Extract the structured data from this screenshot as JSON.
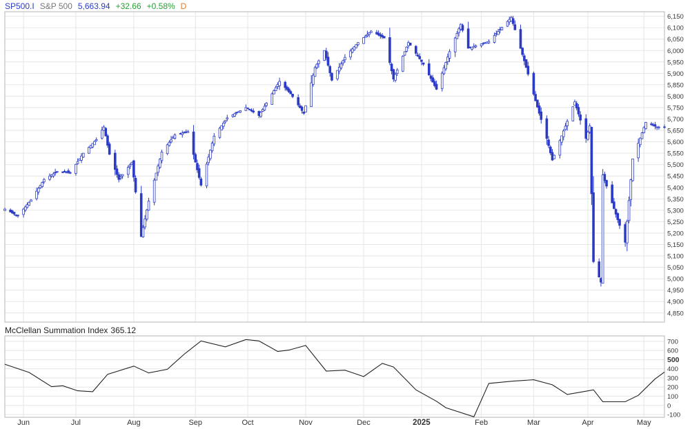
{
  "header": {
    "symbol": "SP500.I",
    "name": "S&P 500",
    "last": "5,663.94",
    "change": "+32.66",
    "change_pct": "+0.58%",
    "frequency": "D"
  },
  "colors": {
    "candle": "#2b3bc6",
    "indicator_line": "#222222",
    "grid": "#e6e6e6",
    "border": "#b4b4b4",
    "change_up": "#26a032",
    "frequency": "#ef7b1a"
  },
  "indicator": {
    "title": "McClellan Summation Index",
    "value": "365.12"
  },
  "chart_data": [
    {
      "type": "candlestick",
      "title": "SP500.I S&P 500",
      "ylim": [
        4810,
        6170
      ],
      "yticks": [
        4850,
        4900,
        4950,
        5000,
        5050,
        5100,
        5150,
        5200,
        5250,
        5300,
        5350,
        5400,
        5450,
        5500,
        5550,
        5600,
        5650,
        5700,
        5750,
        5800,
        5850,
        5900,
        5950,
        6000,
        6050,
        6100,
        6150
      ],
      "ytick_labels": [
        "4,850",
        "4,900",
        "4,950",
        "5,000",
        "5,050",
        "5,100",
        "5,150",
        "5,200",
        "5,250",
        "5,300",
        "5,350",
        "5,400",
        "5,450",
        "5,500",
        "5,550",
        "5,600",
        "5,650",
        "5,700",
        "5,750",
        "5,800",
        "5,850",
        "5,900",
        "5,950",
        "6,000",
        "6,050",
        "6,100",
        "6,150"
      ],
      "x_range": [
        "2024-05-24",
        "2025-05-12"
      ],
      "xticks": [
        {
          "date": "2024-06-03",
          "label": "Jun",
          "bold": false
        },
        {
          "date": "2024-07-01",
          "label": "Jul",
          "bold": false
        },
        {
          "date": "2024-08-01",
          "label": "Aug",
          "bold": false
        },
        {
          "date": "2024-09-03",
          "label": "Sep",
          "bold": false
        },
        {
          "date": "2024-10-01",
          "label": "Oct",
          "bold": false
        },
        {
          "date": "2024-11-01",
          "label": "Nov",
          "bold": false
        },
        {
          "date": "2024-12-02",
          "label": "Dec",
          "bold": false
        },
        {
          "date": "2025-01-02",
          "label": "2025",
          "bold": true
        },
        {
          "date": "2025-02-03",
          "label": "Feb",
          "bold": false
        },
        {
          "date": "2025-03-03",
          "label": "Mar",
          "bold": false
        },
        {
          "date": "2025-04-01",
          "label": "Apr",
          "bold": false
        },
        {
          "date": "2025-05-01",
          "label": "May",
          "bold": false
        }
      ],
      "grid": true,
      "close_path": [
        [
          "2024-05-24",
          5305
        ],
        [
          "2024-05-31",
          5275
        ],
        [
          "2024-06-07",
          5345
        ],
        [
          "2024-06-14",
          5435
        ],
        [
          "2024-06-21",
          5470
        ],
        [
          "2024-06-28",
          5465
        ],
        [
          "2024-07-05",
          5550
        ],
        [
          "2024-07-12",
          5610
        ],
        [
          "2024-07-16",
          5665
        ],
        [
          "2024-07-19",
          5545
        ],
        [
          "2024-07-24",
          5435
        ],
        [
          "2024-07-31",
          5510
        ],
        [
          "2024-08-05",
          5185
        ],
        [
          "2024-08-09",
          5340
        ],
        [
          "2024-08-16",
          5555
        ],
        [
          "2024-08-23",
          5630
        ],
        [
          "2024-08-30",
          5645
        ],
        [
          "2024-09-06",
          5410
        ],
        [
          "2024-09-13",
          5625
        ],
        [
          "2024-09-20",
          5705
        ],
        [
          "2024-09-30",
          5750
        ],
        [
          "2024-10-07",
          5715
        ],
        [
          "2024-10-18",
          5865
        ],
        [
          "2024-10-24",
          5810
        ],
        [
          "2024-10-31",
          5725
        ],
        [
          "2024-11-06",
          5925
        ],
        [
          "2024-11-11",
          6000
        ],
        [
          "2024-11-15",
          5870
        ],
        [
          "2024-11-22",
          5970
        ],
        [
          "2024-11-29",
          6035
        ],
        [
          "2024-12-06",
          6085
        ],
        [
          "2024-12-13",
          6055
        ],
        [
          "2024-12-18",
          5875
        ],
        [
          "2024-12-26",
          6035
        ],
        [
          "2025-01-03",
          5940
        ],
        [
          "2025-01-10",
          5830
        ],
        [
          "2025-01-17",
          5995
        ],
        [
          "2025-01-23",
          6115
        ],
        [
          "2025-01-27",
          6010
        ],
        [
          "2025-02-07",
          6040
        ],
        [
          "2025-02-19",
          6145
        ],
        [
          "2025-02-26",
          5955
        ],
        [
          "2025-03-04",
          5780
        ],
        [
          "2025-03-10",
          5615
        ],
        [
          "2025-03-13",
          5520
        ],
        [
          "2025-03-25",
          5775
        ],
        [
          "2025-03-31",
          5615
        ],
        [
          "2025-04-02",
          5670
        ],
        [
          "2025-04-04",
          5075
        ],
        [
          "2025-04-08",
          4985
        ],
        [
          "2025-04-09",
          5455
        ],
        [
          "2025-04-21",
          5160
        ],
        [
          "2025-04-25",
          5525
        ],
        [
          "2025-05-02",
          5685
        ],
        [
          "2025-05-08",
          5665
        ],
        [
          "2025-05-12",
          5664
        ]
      ]
    },
    {
      "type": "line",
      "title": "McClellan Summation Index 365.12",
      "ylim": [
        -130,
        760
      ],
      "yticks": [
        -100,
        0,
        100,
        200,
        300,
        400,
        500,
        600,
        700
      ],
      "ytick_labels": [
        "-100",
        "0",
        "100",
        "200",
        "300",
        "400",
        "500",
        "600",
        "700"
      ],
      "ytick_labels_bold": [
        "500"
      ],
      "x": [
        "2024-05-24",
        "2024-06-06",
        "2024-06-18",
        "2024-06-24",
        "2024-07-02",
        "2024-07-10",
        "2024-07-18",
        "2024-08-01",
        "2024-08-09",
        "2024-08-19",
        "2024-08-28",
        "2024-09-06",
        "2024-09-19",
        "2024-09-30",
        "2024-10-07",
        "2024-10-17",
        "2024-10-23",
        "2024-11-01",
        "2024-11-12",
        "2024-11-22",
        "2024-12-02",
        "2024-12-12",
        "2024-12-18",
        "2024-12-30",
        "2025-01-10",
        "2025-01-15",
        "2025-01-30",
        "2025-02-07",
        "2025-02-20",
        "2025-03-03",
        "2025-03-13",
        "2025-03-21",
        "2025-03-31",
        "2025-04-04",
        "2025-04-09",
        "2025-04-21",
        "2025-04-28",
        "2025-05-07",
        "2025-05-12"
      ],
      "y": [
        450,
        360,
        205,
        215,
        160,
        150,
        340,
        430,
        355,
        395,
        560,
        705,
        640,
        720,
        705,
        590,
        605,
        655,
        375,
        385,
        315,
        460,
        420,
        170,
        45,
        -25,
        -125,
        240,
        265,
        280,
        225,
        120,
        155,
        170,
        40,
        40,
        110,
        290,
        365
      ]
    }
  ]
}
